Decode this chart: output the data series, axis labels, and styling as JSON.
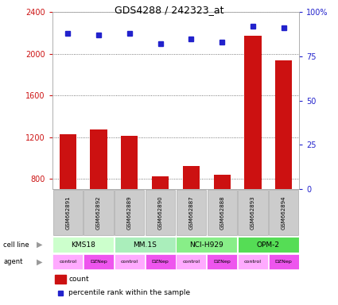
{
  "title": "GDS4288 / 242323_at",
  "samples": [
    "GSM662891",
    "GSM662892",
    "GSM662889",
    "GSM662890",
    "GSM662887",
    "GSM662888",
    "GSM662893",
    "GSM662894"
  ],
  "counts": [
    1230,
    1270,
    1210,
    820,
    920,
    840,
    2170,
    1940
  ],
  "percentiles": [
    88,
    87,
    88,
    82,
    85,
    83,
    92,
    91
  ],
  "ylim_left": [
    700,
    2400
  ],
  "ylim_right": [
    0,
    100
  ],
  "yticks_left": [
    800,
    1200,
    1600,
    2000,
    2400
  ],
  "yticks_right": [
    0,
    25,
    50,
    75,
    100
  ],
  "bar_color": "#cc1111",
  "dot_color": "#2222cc",
  "cell_spans": [
    [
      0,
      2,
      "KMS18"
    ],
    [
      2,
      4,
      "MM.1S"
    ],
    [
      4,
      6,
      "NCI-H929"
    ],
    [
      6,
      8,
      "OPM-2"
    ]
  ],
  "cell_colors": [
    "#ccffcc",
    "#aaeebb",
    "#88ee88",
    "#55dd55"
  ],
  "agents": [
    "control",
    "DZNep",
    "control",
    "DZNep",
    "control",
    "DZNep",
    "control",
    "DZNep"
  ],
  "agent_control_color": "#ffaaff",
  "agent_dznep_color": "#ee55ee",
  "legend_count_color": "#cc1111",
  "legend_pct_color": "#2222cc",
  "left_tick_color": "#cc1111",
  "right_tick_color": "#2222cc",
  "grid_dotted_color": "#555555",
  "sample_box_color": "#cccccc",
  "sample_box_edge": "#aaaaaa"
}
